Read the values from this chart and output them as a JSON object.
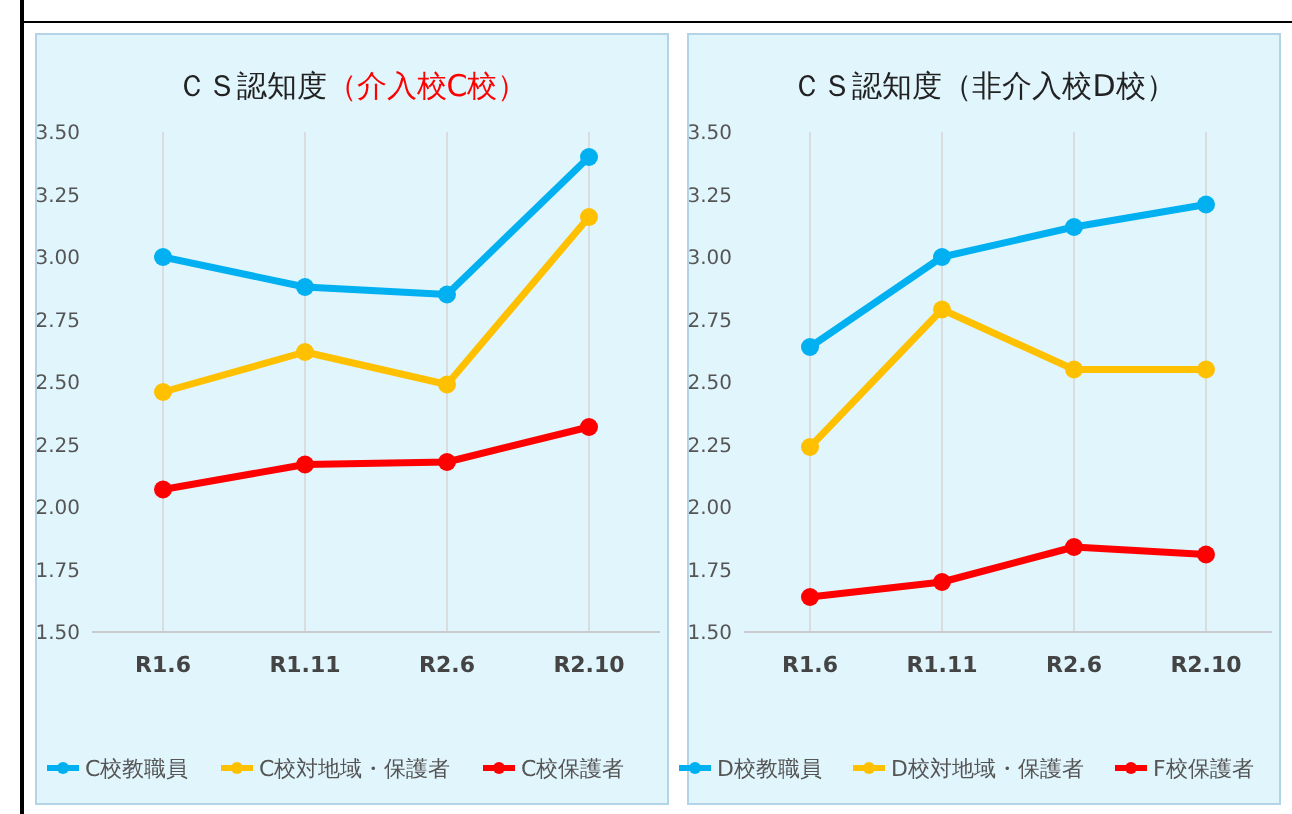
{
  "chart_data": [
    {
      "type": "line",
      "title": "ＣＳ認知度",
      "subtitle": "（介入校C校）",
      "categories": [
        "R1.6",
        "R1.11",
        "R2.6",
        "R2.10"
      ],
      "ylim": [
        1.5,
        3.5
      ],
      "yticks": [
        {
          "value": 1.5,
          "label": "1.50"
        },
        {
          "value": 1.75,
          "label": "1.75"
        },
        {
          "value": 2,
          "label": "2.00"
        },
        {
          "value": 2.25,
          "label": "2.25"
        },
        {
          "value": 2.5,
          "label": "2.50"
        },
        {
          "value": 2.75,
          "label": "2.75"
        },
        {
          "value": 3,
          "label": "3.00"
        },
        {
          "value": 3.25,
          "label": "3.25"
        },
        {
          "value": 3.5,
          "label": "3.50"
        }
      ],
      "grid": "x",
      "legend": "bottom",
      "marker": "circle",
      "line_style": "solid",
      "series": [
        {
          "name": "C校教職員",
          "color": "#00b0f0",
          "values": [
            3.0,
            2.88,
            2.85,
            3.4
          ]
        },
        {
          "name": "C校対地域・保護者",
          "color": "#ffc000",
          "values": [
            2.46,
            2.62,
            2.49,
            3.16
          ]
        },
        {
          "name": "C校保護者",
          "color": "#ff0000",
          "values": [
            2.07,
            2.17,
            2.18,
            2.32
          ]
        }
      ]
    },
    {
      "type": "line",
      "title": "ＣＳ認知度",
      "subtitle": "（非介入校D校）",
      "categories": [
        "R1.6",
        "R1.11",
        "R2.6",
        "R2.10"
      ],
      "ylim": [
        1.5,
        3.5
      ],
      "yticks": [
        {
          "value": 1.5,
          "label": "1.50"
        },
        {
          "value": 1.75,
          "label": "1.75"
        },
        {
          "value": 2,
          "label": "2.00"
        },
        {
          "value": 2.25,
          "label": "2.25"
        },
        {
          "value": 2.5,
          "label": "2.50"
        },
        {
          "value": 2.75,
          "label": "2.75"
        },
        {
          "value": 3,
          "label": "3.00"
        },
        {
          "value": 3.25,
          "label": "3.25"
        },
        {
          "value": 3.5,
          "label": "3.50"
        }
      ],
      "grid": "x",
      "legend": "bottom",
      "marker": "circle",
      "line_style": "solid",
      "series": [
        {
          "name": "D校教職員",
          "color": "#00b0f0",
          "values": [
            2.64,
            3.0,
            3.12,
            3.21
          ]
        },
        {
          "name": "D校対地域・保護者",
          "color": "#ffc000",
          "values": [
            2.24,
            2.79,
            2.55,
            2.55
          ]
        },
        {
          "name": "F校保護者",
          "color": "#ff0000",
          "values": [
            1.64,
            1.7,
            1.84,
            1.81
          ]
        }
      ]
    }
  ]
}
